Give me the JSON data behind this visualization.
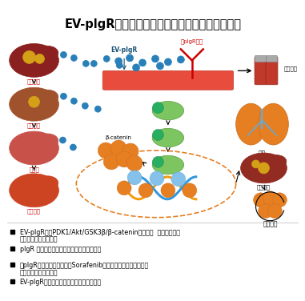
{
  "title": "EV-plgR是肝癌診斷和治療的潛在生物標記及靶點",
  "title_fontsize": 10.5,
  "background_color": "#ffffff",
  "bullet_points": [
    "EV-plgR激活PDK1/Akt/GSK3β/β-catenin信號軸，  促進了腫瘤幹\n性和肝癌細胞腫瘤特性",
    "plgR 在肝癌病人循環細胞外囊泡中表達升高",
    "抗plgR抗體聯合索拉菲尼（Sorafenib）較單獨使用索拉菲尼能更\n有效抑制肝臟腫瘤生長",
    "EV-plgR是潛在的肝癌生物標記和治療靶點"
  ],
  "bullet_fontsize": 5.8,
  "bullet_color": "#000000"
}
